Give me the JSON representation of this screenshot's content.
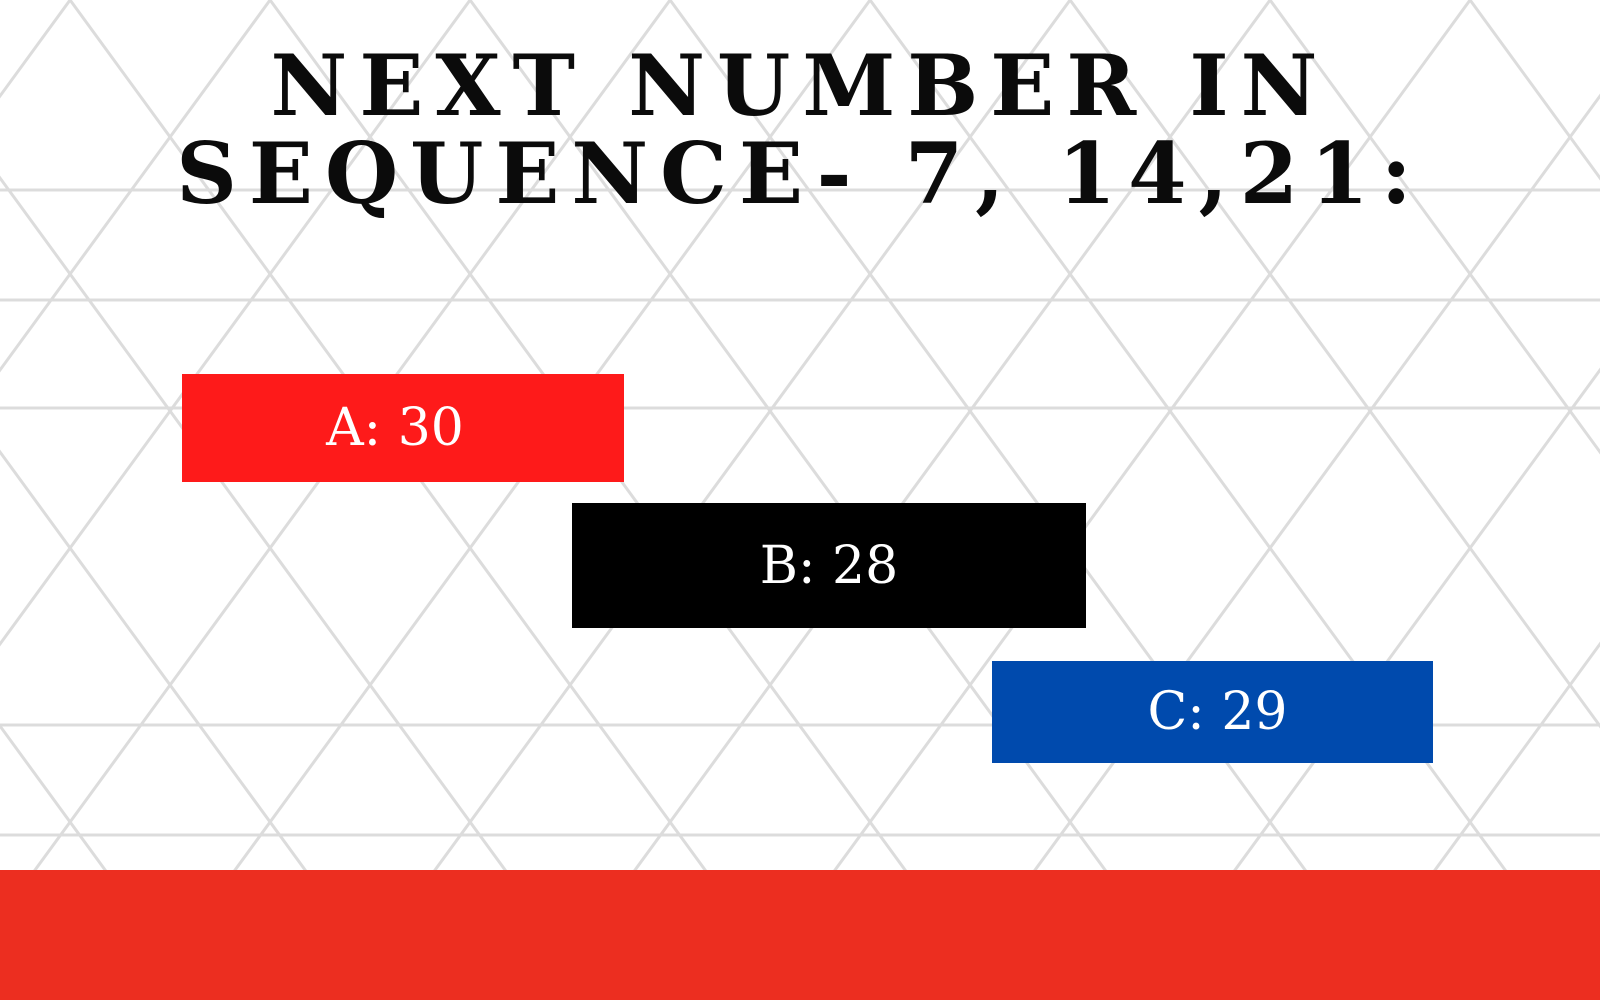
{
  "question": {
    "line1": "NEXT NUMBER IN",
    "line2": "SEQUENCE- 7, 14,21:"
  },
  "answers": [
    {
      "label": "A: 30",
      "color": "#fe1a1a"
    },
    {
      "label": "B: 28",
      "color": "#000000"
    },
    {
      "label": "C: 29",
      "color": "#004aad"
    }
  ],
  "colors": {
    "background": "#ffffff",
    "pattern_lines": "#dcdcdc",
    "bottom_bar": "#ec2e20",
    "question_text": "#0b0b0b"
  }
}
